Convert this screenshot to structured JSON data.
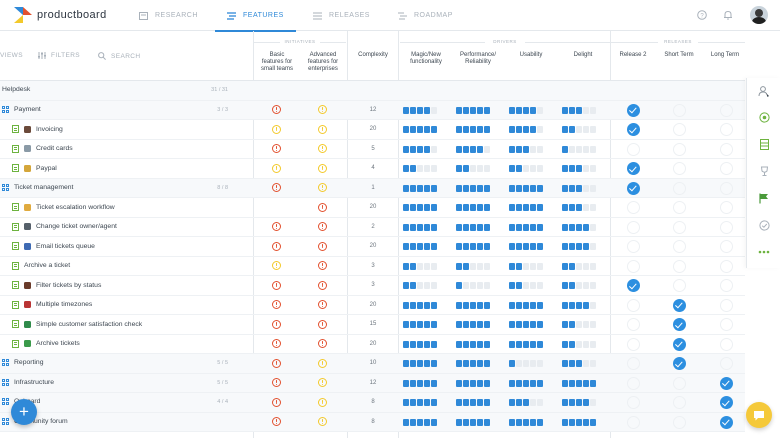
{
  "app": {
    "brand": "productboard",
    "tabs": [
      {
        "label": "RESEARCH",
        "icon": "inbox-icon"
      },
      {
        "label": "FEATURES",
        "icon": "features-icon",
        "active": true
      },
      {
        "label": "RELEASES",
        "icon": "releases-icon"
      },
      {
        "label": "ROADMAP",
        "icon": "roadmap-icon"
      }
    ]
  },
  "toolbar": {
    "views_label": "VIEWS",
    "filters_label": "FILTERS",
    "search_label": "SEARCH"
  },
  "groups": {
    "initiatives": "INITIATIVES",
    "drivers": "DRIVERS",
    "releases": "RELEASES"
  },
  "columns": {
    "basic": [
      "Basic",
      "features for",
      "small teams"
    ],
    "advanced": [
      "Advanced",
      "features for",
      "enterprises"
    ],
    "complexity": "Complexity",
    "magic": [
      "Magic/New",
      "functionality"
    ],
    "performance": [
      "Performance/",
      "Reliability"
    ],
    "usability": "Usability",
    "delight": "Delight",
    "release2": "Release 2",
    "short_term": "Short Term",
    "long_term": "Long Term"
  },
  "colors": {
    "accent": "#2f89d8",
    "red": "#e2512f",
    "yellow": "#f3c92b",
    "feature_green": "#6db33f",
    "chat_yellow": "#f5c93a"
  },
  "rows": [
    {
      "type": "product",
      "name": "Helpdesk",
      "count": "31 / 31"
    },
    {
      "type": "component",
      "name": "Payment",
      "count": "3 / 3",
      "basic": "red",
      "advanced": "yellow",
      "complexity": "12",
      "magic": 4,
      "perf": 5,
      "usability": 4,
      "delight": 3,
      "release2": true
    },
    {
      "type": "feature",
      "name": "Invoicing",
      "icon_color": "#6b4a3a",
      "basic": "yellow",
      "advanced": "yellow",
      "complexity": "20",
      "magic": 5,
      "perf": 5,
      "usability": 4,
      "delight": 2,
      "release2": true
    },
    {
      "type": "feature",
      "name": "Credit cards",
      "icon_color": "#8a9aa6",
      "basic": "red",
      "advanced": "yellow",
      "complexity": "5",
      "magic": 4,
      "perf": 4,
      "usability": 3,
      "delight": 1
    },
    {
      "type": "feature",
      "name": "Paypal",
      "icon_color": "#d4a63a",
      "basic": "yellow",
      "advanced": "yellow",
      "complexity": "4",
      "magic": 2,
      "perf": 2,
      "usability": 2,
      "delight": 3,
      "release2": true
    },
    {
      "type": "component",
      "name": "Ticket management",
      "count": "8 / 8",
      "basic": "red",
      "advanced": "yellow",
      "complexity": "1",
      "magic": 5,
      "perf": 5,
      "usability": 5,
      "delight": 3,
      "release2": true
    },
    {
      "type": "feature",
      "name": "Ticket escalation workflow",
      "icon_color": "#e0aa3e",
      "advanced": "red",
      "complexity": "20",
      "magic": 5,
      "perf": 5,
      "usability": 5,
      "delight": 3
    },
    {
      "type": "feature",
      "name": "Change ticket owner/agent",
      "icon_color": "#56606a",
      "basic": "red",
      "advanced": "red",
      "complexity": "2",
      "magic": 5,
      "perf": 5,
      "usability": 5,
      "delight": 4
    },
    {
      "type": "feature",
      "name": "Email tickets queue",
      "icon_color": "#3e6ab3",
      "basic": "red",
      "advanced": "red",
      "complexity": "20",
      "magic": 5,
      "perf": 5,
      "usability": 5,
      "delight": 4
    },
    {
      "type": "feature",
      "name": "Archive a ticket",
      "basic": "yellow",
      "advanced": "red",
      "complexity": "3",
      "magic": 2,
      "perf": 2,
      "usability": 2,
      "delight": 2
    },
    {
      "type": "feature",
      "name": "Filter tickets by status",
      "icon_color": "#6a3b2a",
      "basic": "red",
      "advanced": "red",
      "complexity": "3",
      "magic": 2,
      "perf": 1,
      "usability": 2,
      "delight": 2,
      "release2": true
    },
    {
      "type": "feature",
      "name": "Multiple timezones",
      "icon_color": "#b93434",
      "basic": "red",
      "advanced": "red",
      "complexity": "20",
      "magic": 5,
      "perf": 5,
      "usability": 5,
      "delight": 4,
      "short_term": true
    },
    {
      "type": "feature",
      "name": "Simple customer satisfaction check",
      "icon_color": "#2f8a4a",
      "basic": "red",
      "advanced": "red",
      "complexity": "15",
      "magic": 5,
      "perf": 5,
      "usability": 5,
      "delight": 2,
      "short_term": true
    },
    {
      "type": "feature",
      "name": "Archive tickets",
      "icon_color": "#3a9a4a",
      "basic": "red",
      "advanced": "red",
      "complexity": "20",
      "magic": 5,
      "perf": 5,
      "usability": 5,
      "delight": 2,
      "short_term": true
    },
    {
      "type": "component",
      "name": "Reporting",
      "count": "5 / 5",
      "basic": "red",
      "advanced": "yellow",
      "complexity": "10",
      "magic": 5,
      "perf": 5,
      "usability": 1,
      "delight": 3,
      "short_term": true
    },
    {
      "type": "component",
      "name": "Infrastructure",
      "count": "5 / 5",
      "basic": "red",
      "advanced": "yellow",
      "complexity": "12",
      "magic": 5,
      "perf": 5,
      "usability": 5,
      "delight": 5,
      "long_term": true
    },
    {
      "type": "component",
      "name": "Onboard",
      "count": "4 / 4",
      "basic": "red",
      "advanced": "yellow",
      "complexity": "8",
      "magic": 5,
      "perf": 5,
      "usability": 3,
      "delight": 4,
      "long_term": true
    },
    {
      "type": "component",
      "name": "Community forum",
      "basic": "red",
      "advanced": "yellow",
      "complexity": "8",
      "magic": 5,
      "perf": 5,
      "usability": 5,
      "delight": 5,
      "long_term": true
    }
  ],
  "rail": [
    "person-settings-icon",
    "target-icon",
    "spreadsheet-icon",
    "trophy-icon",
    "flag-icon",
    "check-circle-icon",
    "more-icon"
  ],
  "fab_label": "+"
}
